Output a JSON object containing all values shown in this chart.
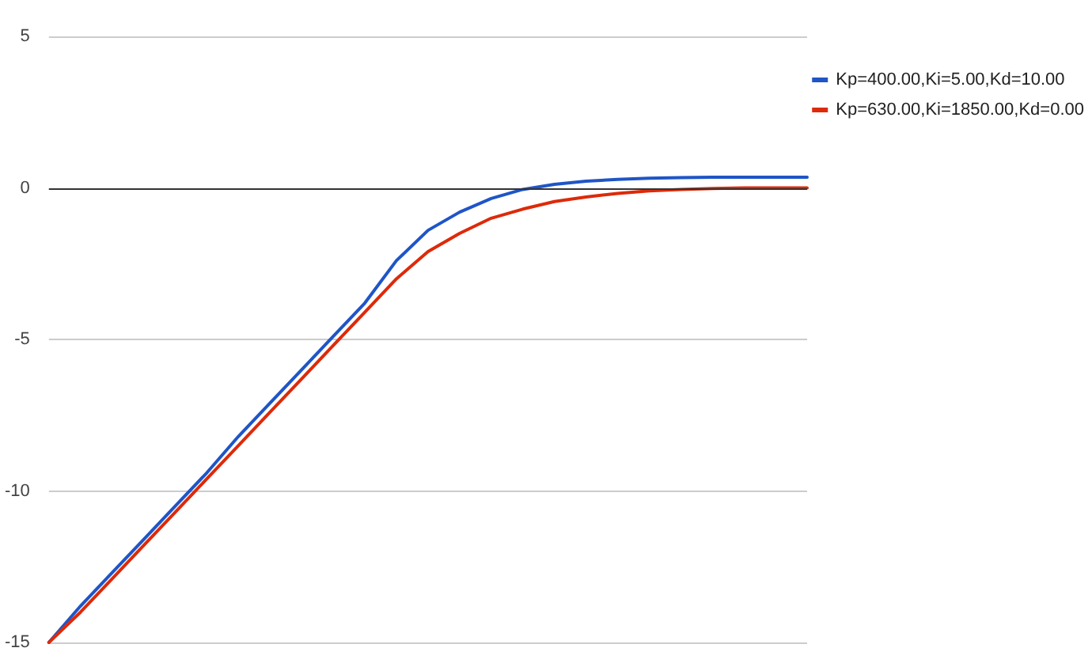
{
  "chart_data": {
    "type": "line",
    "categories": [
      null,
      null,
      null,
      null,
      null,
      null,
      null,
      null,
      null,
      null,
      null,
      null,
      null,
      null,
      null,
      null,
      null,
      null,
      null,
      null,
      null,
      null,
      null,
      null,
      null
    ],
    "series": [
      {
        "name": "Kp=400.00,Ki=5.00,Kd=10.00",
        "color": "#1f55c6",
        "values": [
          -15,
          -13.8,
          -12.7,
          -11.6,
          -10.5,
          -9.4,
          -8.2,
          -7.1,
          -6.0,
          -4.9,
          -3.8,
          -2.4,
          -1.4,
          -0.8,
          -0.35,
          -0.05,
          0.12,
          0.22,
          0.28,
          0.32,
          0.34,
          0.35,
          0.35,
          0.35,
          0.35
        ]
      },
      {
        "name": "Kp=630.00,Ki=1850.00,Kd=0.00",
        "color": "#dd2a0a",
        "values": [
          -15,
          -14.0,
          -12.9,
          -11.8,
          -10.7,
          -9.6,
          -8.5,
          -7.4,
          -6.3,
          -5.2,
          -4.1,
          -3.0,
          -2.1,
          -1.5,
          -1.0,
          -0.7,
          -0.45,
          -0.3,
          -0.18,
          -0.1,
          -0.05,
          -0.02,
          0,
          0,
          0
        ]
      }
    ],
    "ylim": [
      -15,
      5
    ],
    "yticks": [
      -15,
      -10,
      -5,
      0,
      5
    ],
    "grid": "y",
    "legend": "top right",
    "marker": "none",
    "line_style": "solid",
    "ref_lines": [
      {
        "axis": "y",
        "value": 0,
        "color": "#333333"
      }
    ]
  }
}
